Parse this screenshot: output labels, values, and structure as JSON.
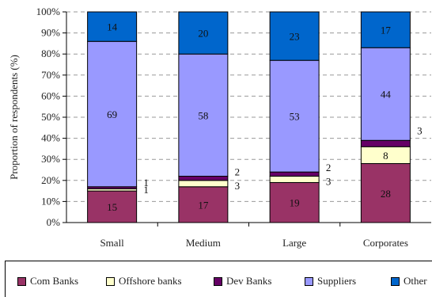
{
  "chart_data": {
    "type": "bar",
    "stacked": true,
    "title": "",
    "xlabel": "",
    "ylabel": "Proportion of respondents (%)",
    "ylim": [
      0,
      100
    ],
    "yticks": [
      "0%",
      "10%",
      "20%",
      "30%",
      "40%",
      "50%",
      "60%",
      "70%",
      "80%",
      "90%",
      "100%"
    ],
    "grid": true,
    "legend_position": "bottom",
    "categories": [
      "Small",
      "Medium",
      "Large",
      "Corporates"
    ],
    "series": [
      {
        "name": "Com Banks",
        "color": "#993366",
        "values": [
          15,
          17,
          19,
          28
        ],
        "labels": [
          "15",
          "17",
          "19",
          "28"
        ]
      },
      {
        "name": "Offshore banks",
        "color": "#ffffcc",
        "values": [
          1,
          3,
          3,
          8
        ],
        "labels": [
          "1",
          "3",
          "3",
          "8"
        ]
      },
      {
        "name": "Dev Banks",
        "color": "#660066",
        "values": [
          1,
          2,
          2,
          3
        ],
        "labels": [
          "1",
          "2",
          "2",
          "3"
        ]
      },
      {
        "name": "Suppliers",
        "color": "#9999ff",
        "values": [
          69,
          58,
          53,
          44
        ],
        "labels": [
          "69",
          "58",
          "53",
          "44"
        ]
      },
      {
        "name": "Other",
        "color": "#0066cc",
        "values": [
          14,
          20,
          23,
          17
        ],
        "labels": [
          "14",
          "20",
          "23",
          "17"
        ]
      }
    ]
  }
}
